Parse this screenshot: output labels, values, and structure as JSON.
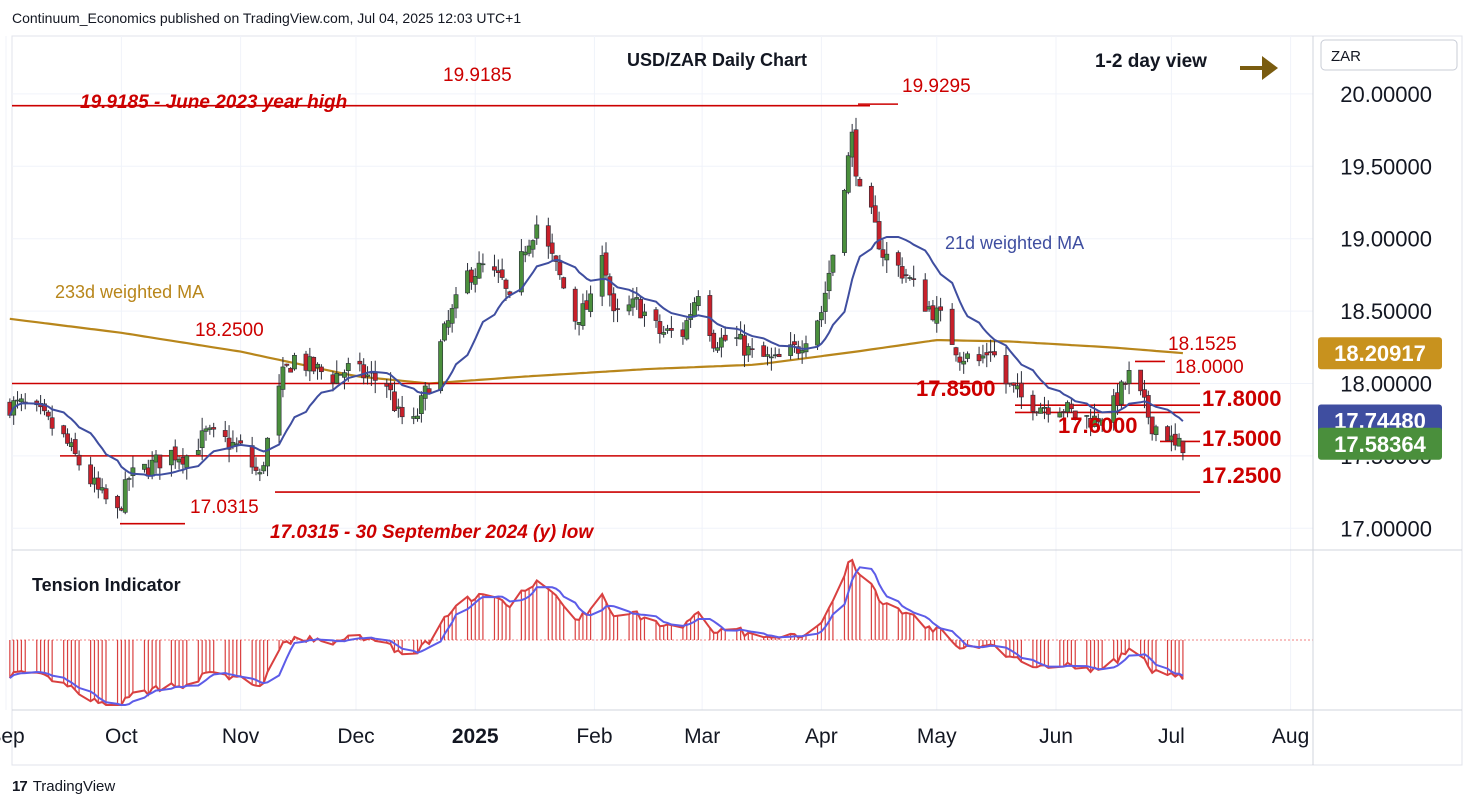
{
  "header": {
    "publisher": "Continuum_Economics published on TradingView.com, Jul 04, 2025 12:03 UTC+1"
  },
  "footer": {
    "brand": "TradingView",
    "logo_glyph": "17"
  },
  "colors": {
    "up_candle": "#4a8f3c",
    "down_candle": "#c8202a",
    "ma21": "#3f4ea0",
    "ma233": "#b8861b",
    "level_line": "#cc0000",
    "annotation": "#cc0000",
    "tension_line": "#5d5ce8",
    "tension_hist": "#d94040",
    "arrow": "#7a5c10"
  },
  "chart_data": [
    {
      "type": "candlestick",
      "title": "USD/ZAR Daily Chart",
      "currency_label": "ZAR",
      "view_note": "1-2 day view",
      "view_icon": "right-arrow-icon",
      "y_ticks": [
        "17.00000",
        "17.50000",
        "18.00000",
        "18.50000",
        "19.00000",
        "19.50000",
        "20.00000"
      ],
      "ylim": [
        16.85,
        20.4
      ],
      "x_ticks": [
        "Sep",
        "Oct",
        "Nov",
        "Dec",
        "2025",
        "Feb",
        "Mar",
        "Apr",
        "May",
        "Jun",
        "Jul",
        "Aug"
      ],
      "x_range": [
        "2024-09-01",
        "2025-08-05"
      ],
      "price_tags": [
        {
          "label": "18.20917",
          "value": 18.20917,
          "color": "#c8921e"
        },
        {
          "label": "17.74480",
          "value": 17.7448,
          "color": "#3f4ea0"
        },
        {
          "label": "17.58364",
          "value": 17.58364,
          "color": "#4a8f3c"
        }
      ],
      "levels": [
        {
          "label": "19.9185",
          "value": 19.9185
        },
        {
          "label": "19.9295",
          "value": 19.9295
        },
        {
          "label": "18.2500",
          "value": 18.25
        },
        {
          "label": "18.1525",
          "value": 18.1525
        },
        {
          "label": "18.0000",
          "value": 18.0
        },
        {
          "label": "17.8500",
          "value": 17.85
        },
        {
          "label": "17.8000",
          "value": 17.8
        },
        {
          "label": "17.6000",
          "value": 17.6
        },
        {
          "label": "17.5000",
          "value": 17.5
        },
        {
          "label": "17.2500",
          "value": 17.25
        },
        {
          "label": "17.0315",
          "value": 17.0315
        }
      ],
      "annotations": {
        "june_high": "19.9185 - June 2023 year high",
        "september_low": "17.0315 - 30 September 2024 (y) low",
        "ma233": "233d weighted MA",
        "ma21": "21d weighted MA"
      },
      "close_anchors": [
        [
          "2024-09-01",
          17.85
        ],
        [
          "2024-09-05",
          17.85
        ],
        [
          "2024-09-10",
          17.78
        ],
        [
          "2024-09-16",
          17.62
        ],
        [
          "2024-09-20",
          17.45
        ],
        [
          "2024-09-25",
          17.25
        ],
        [
          "2024-09-30",
          17.1
        ],
        [
          "2024-10-03",
          17.35
        ],
        [
          "2024-10-08",
          17.42
        ],
        [
          "2024-10-14",
          17.52
        ],
        [
          "2024-10-18",
          17.5
        ],
        [
          "2024-10-23",
          17.65
        ],
        [
          "2024-10-28",
          17.6
        ],
        [
          "2024-11-01",
          17.55
        ],
        [
          "2024-11-06",
          17.35
        ],
        [
          "2024-11-08",
          17.6
        ],
        [
          "2024-11-12",
          18.05
        ],
        [
          "2024-11-15",
          18.18
        ],
        [
          "2024-11-20",
          18.1
        ],
        [
          "2024-11-25",
          18.05
        ],
        [
          "2024-11-29",
          18.1
        ],
        [
          "2024-12-04",
          18.05
        ],
        [
          "2024-12-09",
          18.0
        ],
        [
          "2024-12-12",
          17.78
        ],
        [
          "2024-12-16",
          17.72
        ],
        [
          "2024-12-20",
          18.0
        ],
        [
          "2024-12-24",
          18.35
        ],
        [
          "2024-12-30",
          18.75
        ],
        [
          "2025-01-03",
          18.8
        ],
        [
          "2025-01-08",
          18.7
        ],
        [
          "2025-01-10",
          18.55
        ],
        [
          "2025-01-14",
          18.95
        ],
        [
          "2025-01-17",
          19.1
        ],
        [
          "2025-01-22",
          18.8
        ],
        [
          "2025-01-27",
          18.45
        ],
        [
          "2025-01-31",
          18.55
        ],
        [
          "2025-02-03",
          18.95
        ],
        [
          "2025-02-06",
          18.45
        ],
        [
          "2025-02-12",
          18.55
        ],
        [
          "2025-02-18",
          18.35
        ],
        [
          "2025-02-24",
          18.35
        ],
        [
          "2025-02-28",
          18.65
        ],
        [
          "2025-03-04",
          18.3
        ],
        [
          "2025-03-10",
          18.3
        ],
        [
          "2025-03-14",
          18.2
        ],
        [
          "2025-03-20",
          18.15
        ],
        [
          "2025-03-26",
          18.25
        ],
        [
          "2025-04-01",
          18.5
        ],
        [
          "2025-04-04",
          18.9
        ],
        [
          "2025-04-07",
          19.4
        ],
        [
          "2025-04-09",
          19.7
        ],
        [
          "2025-04-11",
          19.3
        ],
        [
          "2025-04-14",
          19.15
        ],
        [
          "2025-04-17",
          18.9
        ],
        [
          "2025-04-23",
          18.75
        ],
        [
          "2025-04-28",
          18.55
        ],
        [
          "2025-05-02",
          18.45
        ],
        [
          "2025-05-07",
          18.2
        ],
        [
          "2025-05-12",
          18.15
        ],
        [
          "2025-05-15",
          18.25
        ],
        [
          "2025-05-19",
          18.0
        ],
        [
          "2025-05-23",
          17.9
        ],
        [
          "2025-05-28",
          17.85
        ],
        [
          "2025-06-02",
          17.85
        ],
        [
          "2025-06-06",
          17.78
        ],
        [
          "2025-06-11",
          17.75
        ],
        [
          "2025-06-16",
          17.85
        ],
        [
          "2025-06-19",
          18.0
        ],
        [
          "2025-06-20",
          18.05
        ],
        [
          "2025-06-23",
          17.9
        ],
        [
          "2025-06-26",
          17.72
        ],
        [
          "2025-06-30",
          17.65
        ],
        [
          "2025-07-02",
          17.55
        ],
        [
          "2025-07-04",
          17.58
        ]
      ],
      "ma233_anchors": [
        [
          "2024-09-01",
          18.45
        ],
        [
          "2024-10-01",
          18.35
        ],
        [
          "2024-11-01",
          18.22
        ],
        [
          "2024-12-01",
          18.05
        ],
        [
          "2024-12-20",
          18.0
        ],
        [
          "2025-01-15",
          18.05
        ],
        [
          "2025-02-15",
          18.1
        ],
        [
          "2025-03-15",
          18.13
        ],
        [
          "2025-04-10",
          18.22
        ],
        [
          "2025-05-01",
          18.3
        ],
        [
          "2025-05-20",
          18.29
        ],
        [
          "2025-06-15",
          18.25
        ],
        [
          "2025-07-04",
          18.21
        ]
      ]
    },
    {
      "type": "bar",
      "title": "Tension Indicator",
      "series": [
        {
          "name": "Tension Indicator",
          "source": "derived from close_anchors"
        }
      ]
    }
  ]
}
